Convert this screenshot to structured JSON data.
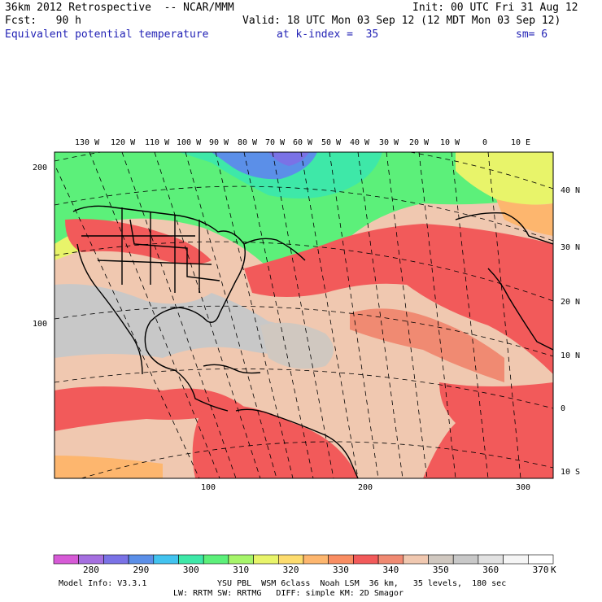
{
  "header": {
    "line1_left": "36km 2012 Retrospective  -- NCAR/MMM",
    "line1_right": "Init: 00 UTC Fri 31 Aug 12",
    "line2_left": "Fcst:   90 h",
    "line2_right": "Valid: 18 UTC Mon 03 Sep 12 (12 MDT Mon 03 Sep 12)",
    "field": "Equivalent potential temperature",
    "level": "at k-index =  35",
    "smoothing": "sm= 6"
  },
  "top_lon_labels": [
    "130 W",
    "120 W",
    "110 W",
    "100 W",
    "90 W",
    "80 W",
    "70 W",
    "60 W",
    "50 W",
    "40 W",
    "30 W",
    "20 W",
    "10 W",
    "0",
    "10 E"
  ],
  "right_lat_labels": [
    "40 N",
    "30 N",
    "20 N",
    "10 N",
    "0",
    "10 S"
  ],
  "left_grid_labels": [
    "200",
    "100"
  ],
  "bottom_grid_labels": [
    "100",
    "200",
    "300"
  ],
  "colorbar": {
    "colors": [
      "#d65ad6",
      "#a56fe0",
      "#7a72e6",
      "#5b8fe8",
      "#42c3ef",
      "#3ee8a8",
      "#5cf07a",
      "#a6f56a",
      "#e8f46a",
      "#fddc6e",
      "#fdb66e",
      "#f98d62",
      "#f25a5a",
      "#f08a72",
      "#f0c8b0",
      "#d0c8c0",
      "#c8c8c8",
      "#e2e2e2",
      "#f5f5f5",
      "#ffffff"
    ],
    "labels": [
      "280",
      "290",
      "300",
      "310",
      "320",
      "330",
      "340",
      "350",
      "360",
      "370"
    ],
    "unit": "K"
  },
  "footer": {
    "line1_left": "Model Info: V3.3.1",
    "line1_right": "YSU PBL  WSM 6class  Noah LSM  36 km,   35 levels,  180 sec",
    "line2": "LW: RRTM SW: RRTMG   DIFF: simple KM: 2D Smagor"
  }
}
